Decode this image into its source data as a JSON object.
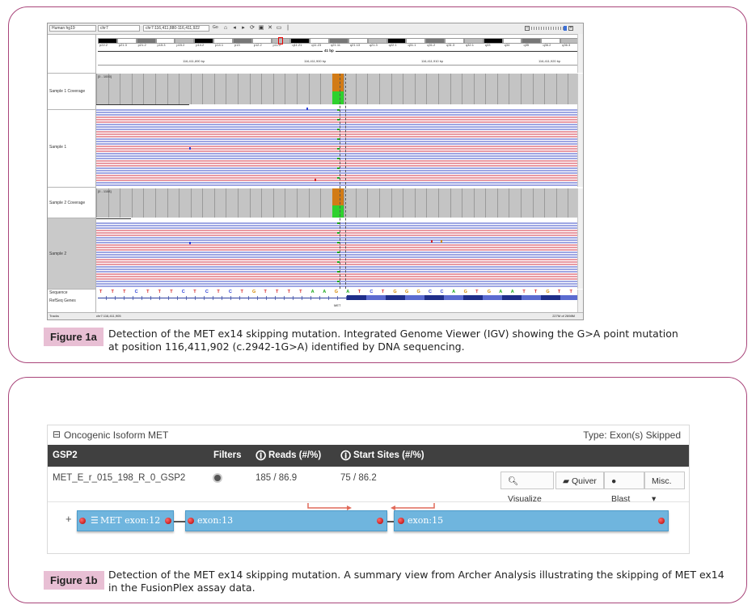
{
  "figure_a": {
    "label": "Figure 1a",
    "caption": "Detection of the MET ex14 skipping mutation. Integrated Genome Viewer (IGV) showing the G>A point mutation at position 116,411,902 (c.2942-1G>A) identified by DNA sequencing.",
    "igv": {
      "genome": "Human hg19",
      "chromosome": "chr7",
      "locus": "chr7:116,411,880-116,411,922",
      "go_label": "Go",
      "ruler_width": "41 bp",
      "ruler_ticks": [
        "116,411,890 bp",
        "116,411,900 bp",
        "116,411,910 bp",
        "116,411,920 bp"
      ],
      "bands": [
        "p22.2",
        "p21.3",
        "p21.2",
        "p15.3",
        "p15.2",
        "p14.2",
        "p14.1",
        "p13",
        "p12.2",
        "p11.2",
        "q11.21",
        "q11.23",
        "q21.11",
        "q21.13",
        "q21.3",
        "q22.1",
        "q31.1",
        "q31.2",
        "q31.3",
        "q32.1",
        "q33",
        "q34",
        "q35",
        "q36.2",
        "q36.3"
      ],
      "coverage_scale_1": "[0 - 1000]",
      "coverage_scale_2": "[0 - 1108]",
      "tracks": [
        "Sample 1 Coverage",
        "Sample 1",
        "Sample 2 Coverage",
        "Sample 2",
        "Sequence",
        "RefSeq Genes"
      ],
      "sequence": [
        "T",
        "T",
        "T",
        "C",
        "T",
        "T",
        "T",
        "C",
        "T",
        "C",
        "T",
        "C",
        "T",
        "G",
        "T",
        "T",
        "T",
        "T",
        "A",
        "A",
        "G",
        "A",
        "T",
        "C",
        "T",
        "G",
        "G",
        "G",
        "C",
        "C",
        "A",
        "G",
        "T",
        "G",
        "A",
        "A",
        "T",
        "T",
        "G",
        "T",
        "T"
      ],
      "gene": "MET",
      "status_locus": "chr7:116,411,905",
      "memory": "227M of 2698M"
    }
  },
  "figure_b": {
    "label": "Figure 1b",
    "caption": "Detection of the MET ex14 skipping mutation. A summary view from Archer Analysis illustrating the skipping of MET ex14 in the FusionPlex assay data.",
    "archer": {
      "panel_title": "Oncogenic Isoform MET",
      "type_label": "Type: Exon(s) Skipped",
      "columns": [
        "GSP2",
        "Filters",
        "Reads (#/%)",
        "Start Sites (#/%)"
      ],
      "row": {
        "gsp2": "MET_E_r_015_198_R_0_GSP2",
        "reads": "185 / 86.9",
        "start_sites": "75 / 86.2"
      },
      "buttons": {
        "visualize": "Visualize",
        "quiver": "Quiver",
        "blast": "Blast",
        "misc": "Misc."
      },
      "exons": {
        "e12": "MET exon:12",
        "e13": "exon:13",
        "e15": "exon:15"
      },
      "plus": "+"
    }
  },
  "colors": {
    "frame": "#a9457a",
    "label_bg": "#e8bfd4",
    "read_forward": "#e99aa3",
    "read_reverse": "#9ea6e3",
    "coverage": "#c4c4c4",
    "mutation_G": "#d27b16",
    "mutation_A": "#2ed12e",
    "exon_blue": "#6fb5de",
    "header_dark": "#404040"
  }
}
